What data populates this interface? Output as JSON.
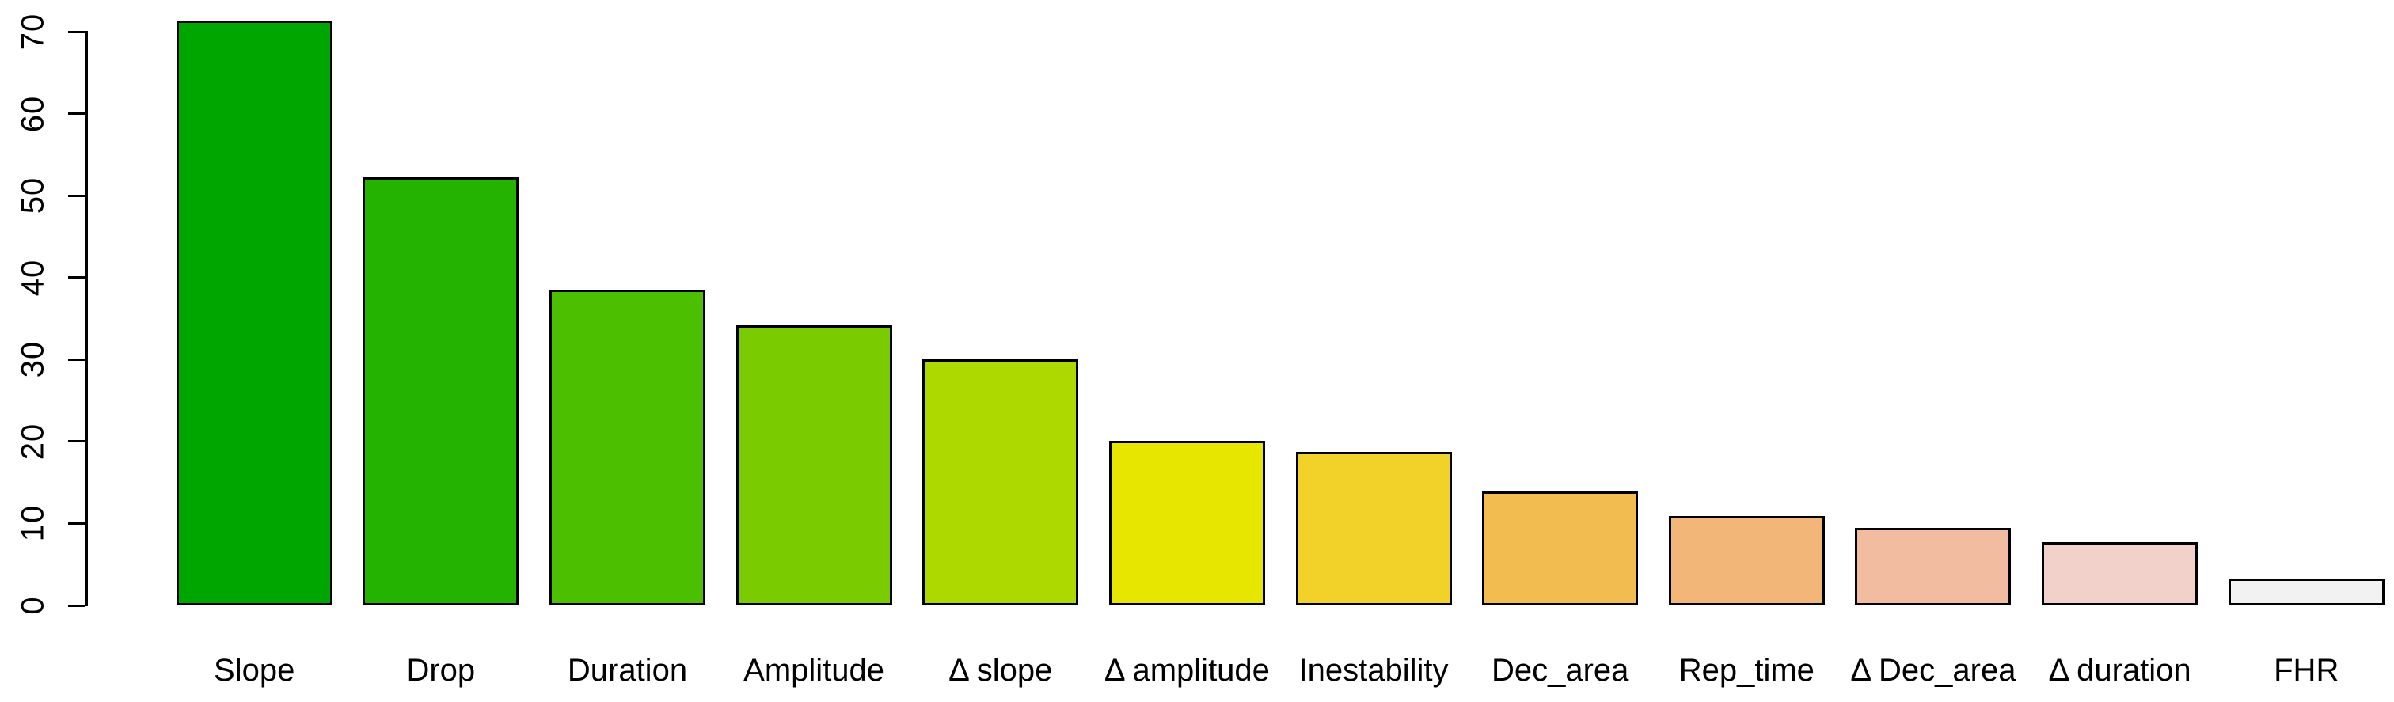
{
  "chart_data": {
    "type": "bar",
    "title": "",
    "xlabel": "",
    "ylabel": "",
    "categories": [
      "Slope",
      "Drop",
      "Duration",
      "Amplitude",
      "Δ slope",
      "Δ amplitude",
      "Inestability",
      "Dec_area",
      "Rep_time",
      "Δ Dec_area",
      "Δ duration",
      "FHR"
    ],
    "values": [
      71.4,
      52.2,
      38.5,
      34.2,
      30.0,
      20.1,
      18.7,
      13.9,
      10.9,
      9.5,
      7.7,
      3.3
    ],
    "bar_colors": [
      "#00A600",
      "#24B300",
      "#4CBF00",
      "#7ACC00",
      "#ADD900",
      "#E6E600",
      "#F2D128",
      "#F2BC51",
      "#F2B679",
      "#F2BCA1",
      "#F2D1CA",
      "#F2F2F2"
    ],
    "bar_border_color": "#000000",
    "yticks": [
      0,
      10,
      20,
      30,
      40,
      50,
      60,
      70
    ],
    "ytick_labels": [
      "0",
      "10",
      "20",
      "30",
      "40",
      "50",
      "60",
      "70"
    ],
    "ylim": [
      0,
      70
    ],
    "ytick_labels_rotated": true,
    "grid": false,
    "legend": null,
    "background_color": "#FFFFFF",
    "axis_color": "#000000"
  }
}
